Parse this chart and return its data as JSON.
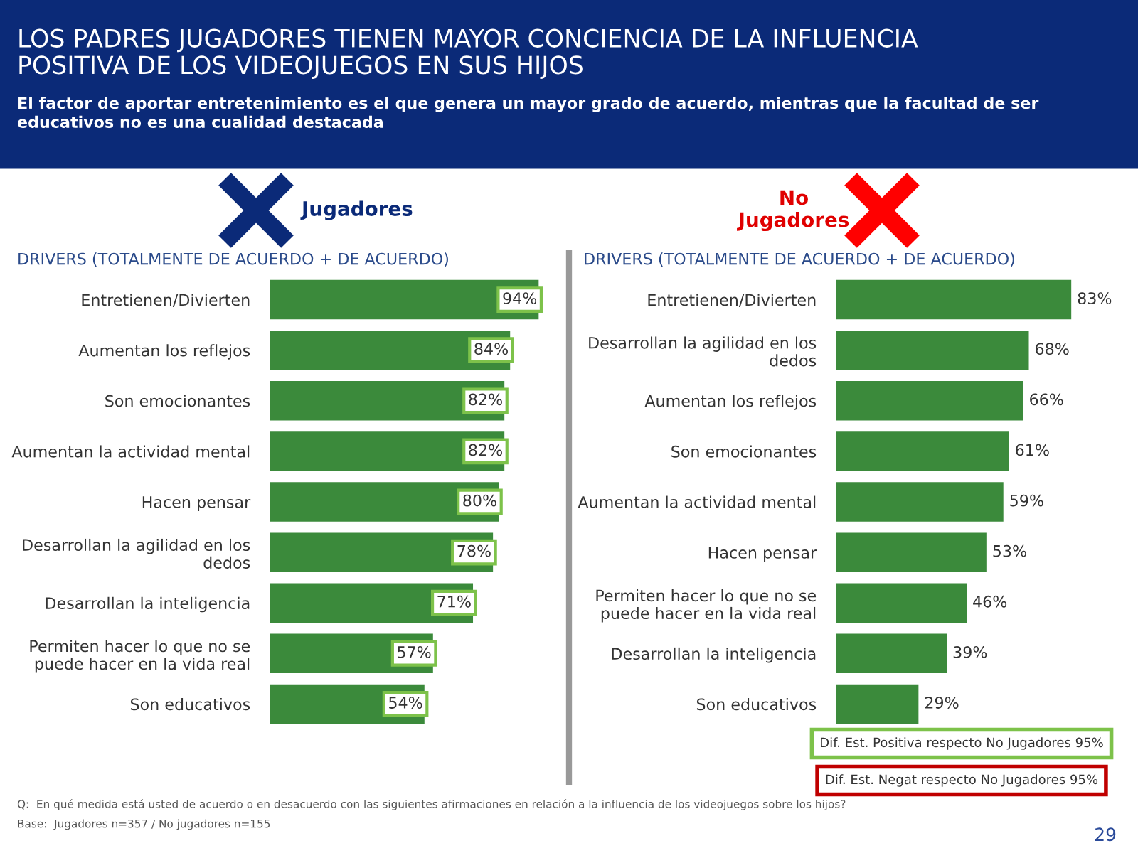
{
  "chart_data": [
    {
      "type": "bar",
      "orientation": "horizontal",
      "title": "Jugadores",
      "subtitle": "DRIVERS (TOTALMENTE DE ACUERDO + DE ACUERDO)",
      "categories": [
        "Entretienen/Divierten",
        "Aumentan los reflejos",
        "Son emocionantes",
        "Aumentan la actividad mental",
        "Hacen pensar",
        "Desarrollan la agilidad en los\ndedos",
        "Desarrollan la inteligencia",
        "Permiten hacer lo que no se\npuede hacer en la vida real",
        "Son educativos"
      ],
      "values": [
        94,
        84,
        82,
        82,
        80,
        78,
        71,
        57,
        54
      ],
      "value_labels": [
        "94%",
        "84%",
        "82%",
        "82%",
        "80%",
        "78%",
        "71%",
        "57%",
        "54%"
      ],
      "color": "#3b8a3b",
      "grid": false,
      "annotations": [
        "LOS PADRES JUGADORES TIENEN MAYOR CONCIENCIA DE LA INFLUENCIA\nPOSITIVA DE LOS VIDEOJUEGOS EN SUS HIJOS",
        "El factor de aportar entretenimiento es el que genera un mayor grado de acuerdo, mientras que la facultad de ser\neducativos no es una cualidad destacada",
        "Q:  En qué medida está usted de acuerdo o en desacuerdo con las siguientes afirmaciones en relación a la influencia de los videojuegos sobre los hijos?",
        "Base:  Jugadores n=357 / No jugadores n=155",
        "29"
      ]
    },
    {
      "type": "bar",
      "orientation": "horizontal",
      "title": "No\nJugadores",
      "subtitle": "DRIVERS (TOTALMENTE DE ACUERDO + DE ACUERDO)",
      "categories": [
        "Entretienen/Divierten",
        "Desarrollan la agilidad en los\ndedos",
        "Aumentan los reflejos",
        "Son emocionantes",
        "Aumentan la actividad mental",
        "Hacen pensar",
        "Permiten hacer lo que no se\npuede hacer en la vida real",
        "Desarrollan la inteligencia",
        "Son educativos"
      ],
      "values": [
        83,
        68,
        66,
        61,
        59,
        53,
        46,
        39,
        29
      ],
      "value_labels": [
        "83%",
        "68%",
        "66%",
        "61%",
        "59%",
        "53%",
        "46%",
        "39%",
        "29%"
      ],
      "color": "#3b8a3b",
      "grid": false,
      "annotations": [
        "Dif. Est. Positiva respecto No Jugadores 95%",
        "Dif. Est. Negat respecto No Jugadores 95%"
      ]
    }
  ]
}
